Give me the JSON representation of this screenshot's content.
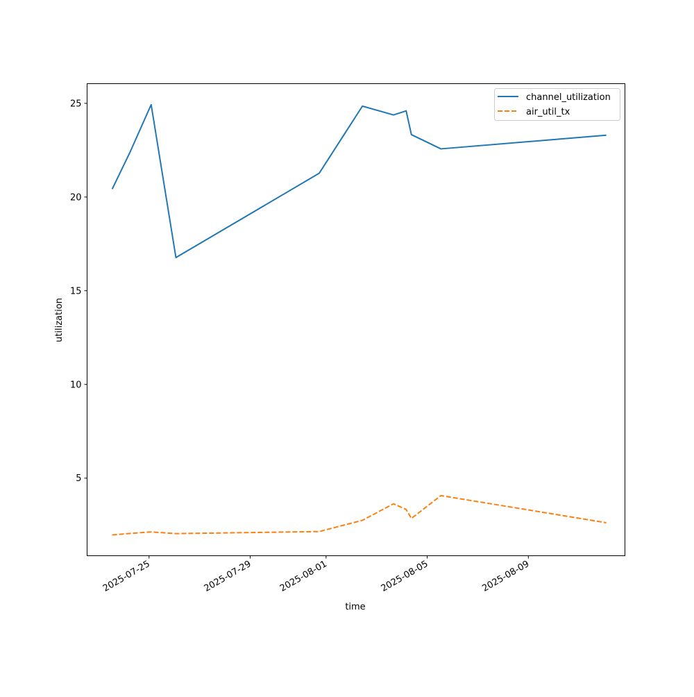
{
  "chart_data": {
    "type": "line",
    "xlabel": "time",
    "ylabel": "utilization",
    "x_type": "date",
    "xlim": [
      "2025-07-22T13:12",
      "2025-08-12T19:40"
    ],
    "ylim": [
      0.86,
      26.05
    ],
    "x_ticks": [
      "2025-07-25",
      "2025-07-29",
      "2025-08-01",
      "2025-08-05",
      "2025-08-09"
    ],
    "y_ticks": [
      5,
      10,
      15,
      20,
      25
    ],
    "x_tick_labels": [
      "2025-07-25",
      "2025-07-29",
      "2025-08-01",
      "2025-08-05",
      "2025-08-09"
    ],
    "y_tick_labels": [
      "5",
      "10",
      "15",
      "20",
      "25"
    ],
    "grid": false,
    "legend_position": "top-right",
    "series": [
      {
        "name": "channel_utilization",
        "color": "#1f77b4",
        "dash": "solid",
        "points": [
          [
            "2025-07-23T13:00",
            20.42
          ],
          [
            "2025-07-24T06:00",
            22.4
          ],
          [
            "2025-07-25T02:00",
            24.93
          ],
          [
            "2025-07-26T01:30",
            16.77
          ],
          [
            "2025-07-31T17:30",
            21.27
          ],
          [
            "2025-08-02T10:30",
            24.85
          ],
          [
            "2025-08-03T16:00",
            24.38
          ],
          [
            "2025-08-04T04:00",
            24.6
          ],
          [
            "2025-08-04T09:00",
            23.33
          ],
          [
            "2025-08-05T13:00",
            22.57
          ],
          [
            "2025-08-12T02:00",
            23.3
          ]
        ]
      },
      {
        "name": "air_util_tx",
        "color": "#ff7f0e",
        "dash": "dashed",
        "points": [
          [
            "2025-07-23T13:00",
            1.97
          ],
          [
            "2025-07-24T06:00",
            2.05
          ],
          [
            "2025-07-25T02:00",
            2.13
          ],
          [
            "2025-07-26T01:30",
            2.04
          ],
          [
            "2025-07-31T17:30",
            2.15
          ],
          [
            "2025-08-02T10:30",
            2.75
          ],
          [
            "2025-08-03T16:00",
            3.63
          ],
          [
            "2025-08-04T04:00",
            3.33
          ],
          [
            "2025-08-04T09:00",
            2.85
          ],
          [
            "2025-08-05T13:00",
            4.07
          ],
          [
            "2025-08-12T02:00",
            2.62
          ]
        ]
      }
    ]
  }
}
